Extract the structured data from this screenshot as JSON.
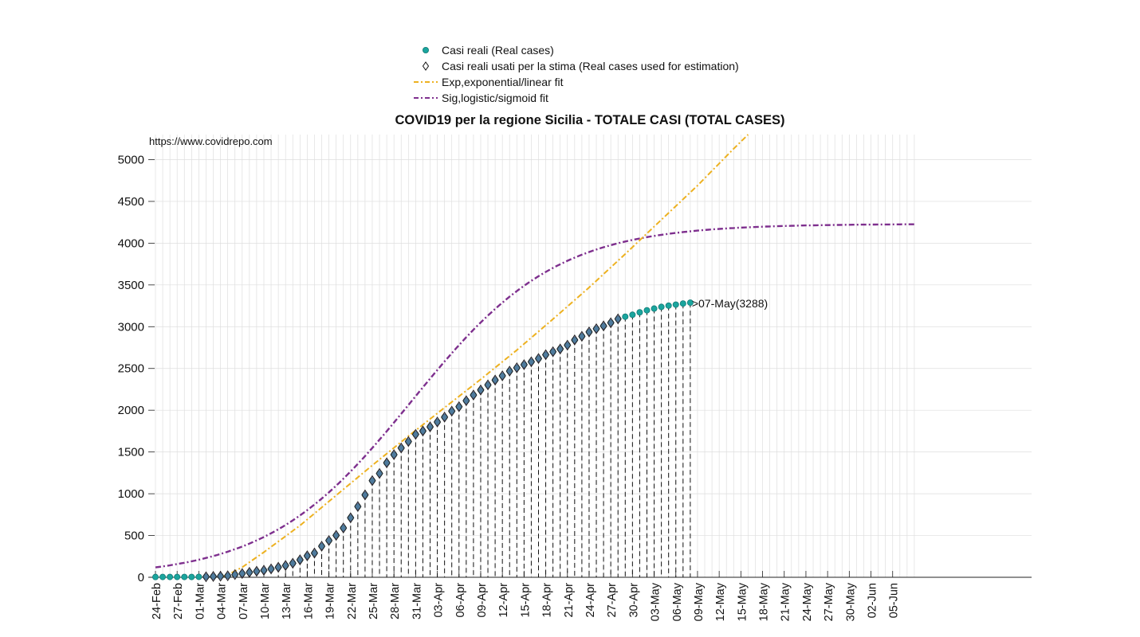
{
  "chart_data": {
    "type": "line",
    "title": "COVID19 per la regione Sicilia - TOTALE CASI (TOTAL CASES)",
    "source_annotation": "https://www.covidrepo.com",
    "last_point_label": ">07-May(3288)",
    "xlabel": "",
    "ylabel": "",
    "ylim": [
      0,
      5300
    ],
    "yticks": [
      0,
      500,
      1000,
      1500,
      2000,
      2500,
      3000,
      3500,
      4000,
      4500,
      5000
    ],
    "xticks": [
      "24-Feb",
      "27-Feb",
      "01-Mar",
      "04-Mar",
      "07-Mar",
      "10-Mar",
      "13-Mar",
      "16-Mar",
      "19-Mar",
      "22-Mar",
      "25-Mar",
      "28-Mar",
      "31-Mar",
      "03-Apr",
      "06-Apr",
      "09-Apr",
      "12-Apr",
      "15-Apr",
      "18-Apr",
      "21-Apr",
      "24-Apr",
      "27-Apr",
      "30-Apr",
      "03-May",
      "06-May",
      "09-May",
      "12-May",
      "15-May",
      "18-May",
      "21-May",
      "24-May",
      "27-May",
      "30-May",
      "02-Jun",
      "05-Jun"
    ],
    "x_start_date": "24-Feb",
    "x_end_day_index": 105,
    "grid": true,
    "legend_position": "top",
    "series": [
      {
        "name": "Casi reali (Real cases)",
        "marker": "circle",
        "color": "#1aa59e",
        "start_day": 0,
        "values": [
          3,
          4,
          4,
          4,
          4,
          4,
          5,
          6,
          10,
          13,
          18,
          32,
          45,
          59,
          72,
          84,
          100,
          120,
          141,
          168,
          209,
          257,
          290,
          372,
          440,
          502,
          590,
          712,
          847,
          986,
          1157,
          1243,
          1370,
          1468,
          1548,
          1625,
          1711,
          1751,
          1801,
          1859,
          1917,
          1989,
          2042,
          2114,
          2182,
          2242,
          2303,
          2361,
          2412,
          2468,
          2508,
          2545,
          2580,
          2619,
          2664,
          2700,
          2733,
          2779,
          2841,
          2885,
          2937,
          2975,
          3009,
          3047,
          3093,
          3120,
          3143,
          3172,
          3196,
          3217,
          3237,
          3252,
          3264,
          3277,
          3288
        ]
      },
      {
        "name": "Casi reali usati per la stima (Real cases used for estimation)",
        "marker": "diamond",
        "color": "#555555",
        "start_day": 7,
        "values": [
          6,
          10,
          13,
          18,
          32,
          45,
          59,
          72,
          84,
          100,
          120,
          141,
          168,
          209,
          257,
          290,
          372,
          440,
          502,
          590,
          712,
          847,
          986,
          1157,
          1243,
          1370,
          1468,
          1548,
          1625,
          1711,
          1751,
          1801,
          1859,
          1917,
          1989,
          2042,
          2114,
          2182,
          2242,
          2303,
          2361,
          2412,
          2468,
          2508,
          2545,
          2580,
          2619,
          2664,
          2700,
          2733,
          2779,
          2841,
          2885,
          2937,
          2975,
          3009,
          3047,
          3093
        ]
      },
      {
        "name": "Exp,exponential/linear fit",
        "style": "dash-dot",
        "color": "#edb120",
        "points": [
          [
            9,
            0
          ],
          [
            10,
            30
          ],
          [
            12,
            120
          ],
          [
            15,
            300
          ],
          [
            20,
            620
          ],
          [
            25,
            980
          ],
          [
            30,
            1340
          ],
          [
            35,
            1690
          ],
          [
            40,
            2030
          ],
          [
            45,
            2370
          ],
          [
            50,
            2720
          ],
          [
            55,
            3090
          ],
          [
            60,
            3470
          ],
          [
            65,
            3870
          ],
          [
            70,
            4280
          ],
          [
            75,
            4690
          ],
          [
            80,
            5130
          ],
          [
            82,
            5300
          ]
        ]
      },
      {
        "name": "Sig,logistic/sigmoid fit",
        "style": "dash",
        "color": "#7e2f8e",
        "start_day": 0,
        "logistic": {
          "K": 4230,
          "r": 0.1,
          "t0": 35.5,
          "end_day": 105
        }
      }
    ]
  }
}
